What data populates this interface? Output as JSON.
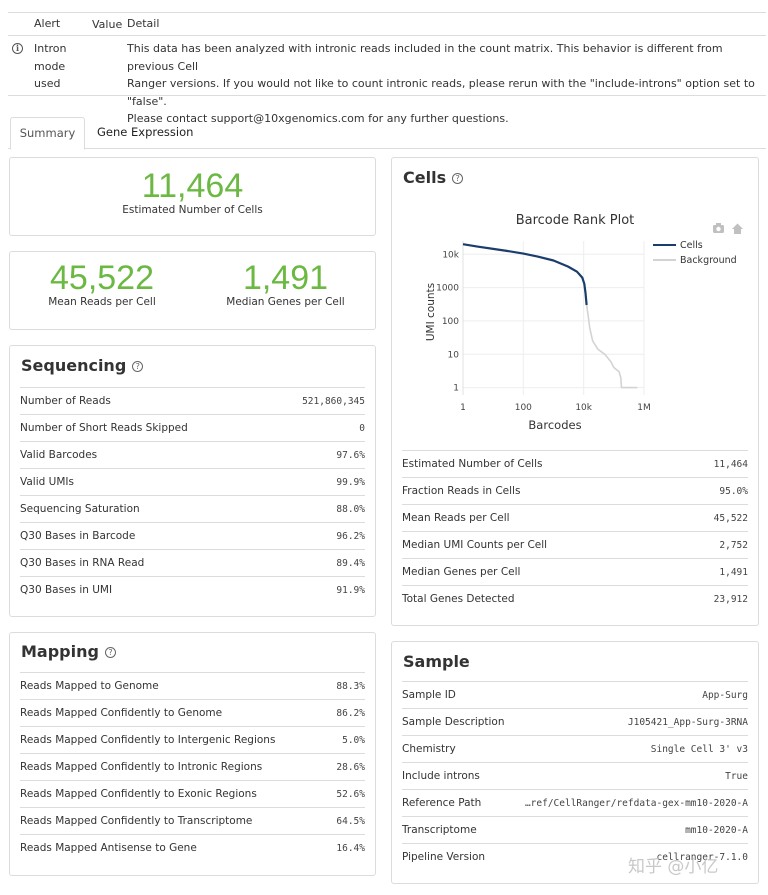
{
  "alerts": {
    "headers": {
      "alert": "Alert",
      "value": "Value",
      "detail": "Detail"
    },
    "rows": [
      {
        "icon": "info-icon",
        "alert_lines": [
          "Intron",
          "mode",
          "used"
        ],
        "value": "",
        "detail_lines": [
          "This data has been analyzed with intronic reads included in the count matrix. This behavior is different from previous Cell",
          "Ranger versions. If you would not like to count intronic reads, please rerun with the \"include-introns\" option set to \"false\".",
          "Please contact support@10xgenomics.com for any further questions."
        ]
      }
    ]
  },
  "tabs": [
    {
      "label": "Summary",
      "active": true
    },
    {
      "label": "Gene Expression",
      "active": false
    }
  ],
  "hero": {
    "cells": {
      "value": "11,464",
      "label": "Estimated Number of Cells"
    },
    "mean_reads": {
      "value": "45,522",
      "label": "Mean Reads per Cell"
    },
    "median_genes": {
      "value": "1,491",
      "label": "Median Genes per Cell"
    }
  },
  "sequencing": {
    "title": "Sequencing",
    "rows": [
      {
        "label": "Number of Reads",
        "value": "521,860,345"
      },
      {
        "label": "Number of Short Reads Skipped",
        "value": "0"
      },
      {
        "label": "Valid Barcodes",
        "value": "97.6%"
      },
      {
        "label": "Valid UMIs",
        "value": "99.9%"
      },
      {
        "label": "Sequencing Saturation",
        "value": "88.0%"
      },
      {
        "label": "Q30 Bases in Barcode",
        "value": "96.2%"
      },
      {
        "label": "Q30 Bases in RNA Read",
        "value": "89.4%"
      },
      {
        "label": "Q30 Bases in UMI",
        "value": "91.9%"
      }
    ]
  },
  "mapping": {
    "title": "Mapping",
    "rows": [
      {
        "label": "Reads Mapped to Genome",
        "value": "88.3%"
      },
      {
        "label": "Reads Mapped Confidently to Genome",
        "value": "86.2%"
      },
      {
        "label": "Reads Mapped Confidently to Intergenic Regions",
        "value": "5.0%"
      },
      {
        "label": "Reads Mapped Confidently to Intronic Regions",
        "value": "28.6%"
      },
      {
        "label": "Reads Mapped Confidently to Exonic Regions",
        "value": "52.6%"
      },
      {
        "label": "Reads Mapped Confidently to Transcriptome",
        "value": "64.5%"
      },
      {
        "label": "Reads Mapped Antisense to Gene",
        "value": "16.4%"
      }
    ]
  },
  "cells": {
    "title": "Cells",
    "rows": [
      {
        "label": "Estimated Number of Cells",
        "value": "11,464"
      },
      {
        "label": "Fraction Reads in Cells",
        "value": "95.0%"
      },
      {
        "label": "Mean Reads per Cell",
        "value": "45,522"
      },
      {
        "label": "Median UMI Counts per Cell",
        "value": "2,752"
      },
      {
        "label": "Median Genes per Cell",
        "value": "1,491"
      },
      {
        "label": "Total Genes Detected",
        "value": "23,912"
      }
    ]
  },
  "sample": {
    "title": "Sample",
    "rows": [
      {
        "label": "Sample ID",
        "value": "App-Surg"
      },
      {
        "label": "Sample Description",
        "value": "J105421_App-Surg-3RNA"
      },
      {
        "label": "Chemistry",
        "value": "Single Cell 3' v3"
      },
      {
        "label": "Include introns",
        "value": "True"
      },
      {
        "label": "Reference Path",
        "value": "…ref/CellRanger/refdata-gex-mm10-2020-A"
      },
      {
        "label": "Transcriptome",
        "value": "mm10-2020-A"
      },
      {
        "label": "Pipeline Version",
        "value": "cellranger-7.1.0"
      }
    ]
  },
  "chart_data": {
    "type": "line",
    "title": "Barcode Rank Plot",
    "xlabel": "Barcodes",
    "ylabel": "UMI counts",
    "xscale": "log",
    "yscale": "log",
    "xlim": [
      1,
      1000000
    ],
    "ylim": [
      0.6,
      25000
    ],
    "x_ticks": [
      1,
      100,
      10000,
      1000000
    ],
    "x_tick_labels": [
      "1",
      "100",
      "10k",
      "1M"
    ],
    "y_ticks": [
      1,
      10,
      100,
      1000,
      10000
    ],
    "y_tick_labels": [
      "1",
      "10",
      "100",
      "1000",
      "10k"
    ],
    "legend": "top-right",
    "series": [
      {
        "name": "Cells",
        "color": "#1a3d6d",
        "x": [
          1,
          3,
          10,
          30,
          100,
          300,
          1000,
          3000,
          6000,
          9000,
          10500,
          11464,
          12500
        ],
        "y": [
          20000,
          17000,
          14500,
          12500,
          10500,
          8500,
          6500,
          4300,
          3000,
          2000,
          1300,
          700,
          300
        ]
      },
      {
        "name": "Background",
        "color": "#d3d3d3",
        "x": [
          12500,
          14000,
          16000,
          20000,
          30000,
          50000,
          80000,
          100000,
          150000,
          170000,
          180000,
          250000,
          400000,
          600000
        ],
        "y": [
          300,
          150,
          60,
          25,
          14,
          10,
          6,
          4,
          3,
          2,
          1,
          1,
          1,
          1
        ]
      }
    ]
  },
  "watermark": "知乎 @小亿"
}
